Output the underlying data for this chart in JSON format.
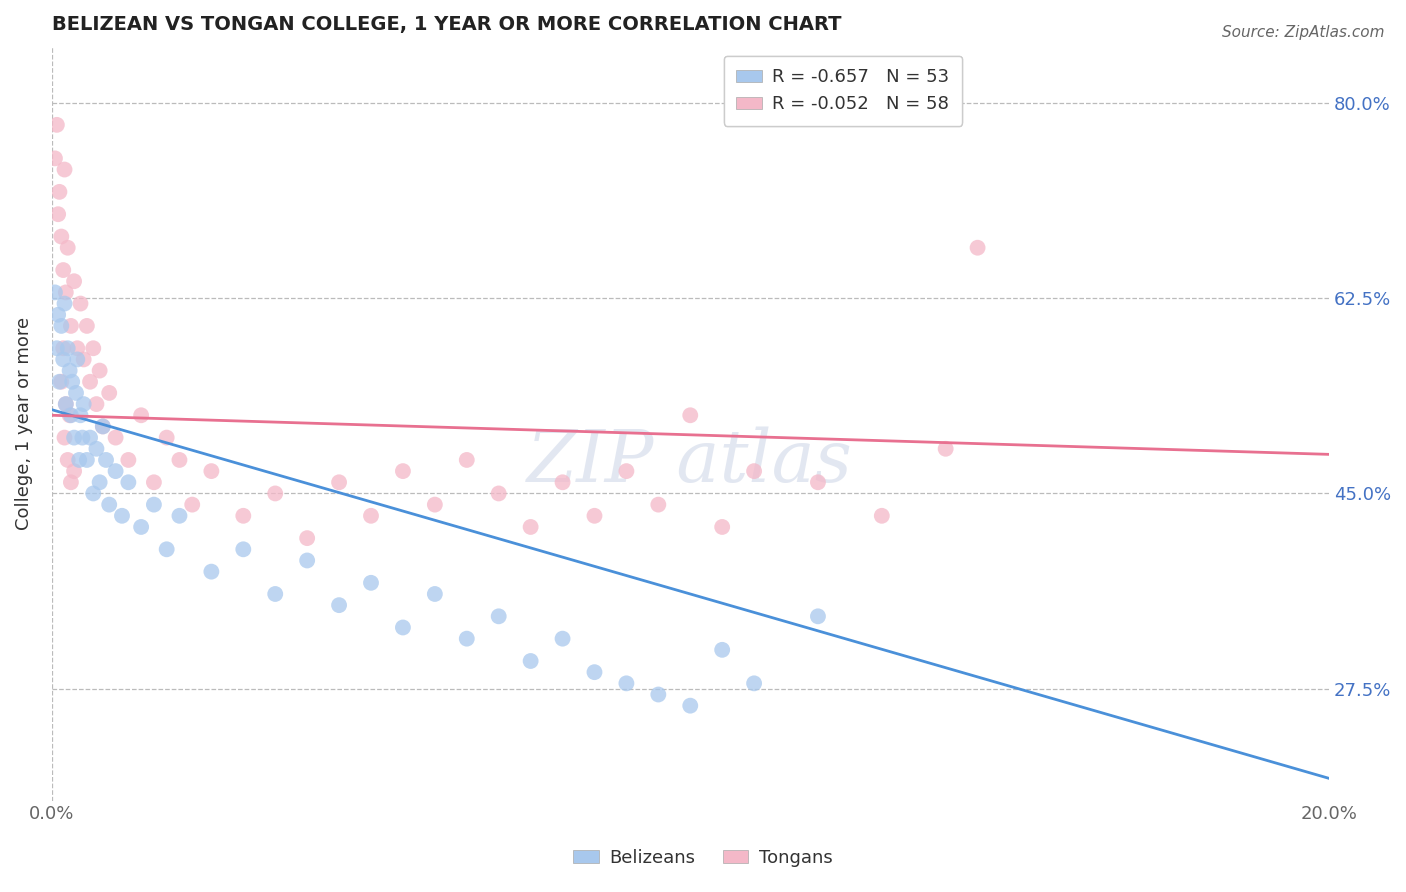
{
  "title": "BELIZEAN VS TONGAN COLLEGE, 1 YEAR OR MORE CORRELATION CHART",
  "source": "Source: ZipAtlas.com",
  "ylabel": "College, 1 year or more",
  "xlim": [
    0.0,
    20.0
  ],
  "ylim": [
    17.5,
    85.0
  ],
  "xticklabels": [
    "0.0%",
    "20.0%"
  ],
  "ytick_values": [
    27.5,
    45.0,
    62.5,
    80.0
  ],
  "ytick_labels": [
    "27.5%",
    "45.0%",
    "62.5%",
    "80.0%"
  ],
  "belizean_color": "#A8C8ED",
  "tongan_color": "#F4B8C8",
  "belizean_line_color": "#4A90D9",
  "tongan_line_color": "#E87090",
  "legend_label_1": "R = -0.657   N = 53",
  "legend_label_2": "R = -0.052   N = 58",
  "legend_name_1": "Belizeans",
  "legend_name_2": "Tongans",
  "belizean_x": [
    0.05,
    0.08,
    0.1,
    0.12,
    0.15,
    0.18,
    0.2,
    0.22,
    0.25,
    0.28,
    0.3,
    0.32,
    0.35,
    0.38,
    0.4,
    0.43,
    0.45,
    0.48,
    0.5,
    0.55,
    0.6,
    0.65,
    0.7,
    0.75,
    0.8,
    0.85,
    0.9,
    1.0,
    1.1,
    1.2,
    1.4,
    1.6,
    1.8,
    2.0,
    2.5,
    3.0,
    3.5,
    4.0,
    4.5,
    5.0,
    5.5,
    6.0,
    6.5,
    7.0,
    7.5,
    8.0,
    8.5,
    9.0,
    9.5,
    10.0,
    10.5,
    11.0,
    12.0
  ],
  "belizean_y": [
    63,
    58,
    61,
    55,
    60,
    57,
    62,
    53,
    58,
    56,
    52,
    55,
    50,
    54,
    57,
    48,
    52,
    50,
    53,
    48,
    50,
    45,
    49,
    46,
    51,
    48,
    44,
    47,
    43,
    46,
    42,
    44,
    40,
    43,
    38,
    40,
    36,
    39,
    35,
    37,
    33,
    36,
    32,
    34,
    30,
    32,
    29,
    28,
    27,
    26,
    31,
    28,
    34
  ],
  "tongan_x": [
    0.05,
    0.08,
    0.1,
    0.12,
    0.15,
    0.18,
    0.2,
    0.22,
    0.25,
    0.3,
    0.35,
    0.4,
    0.45,
    0.5,
    0.55,
    0.6,
    0.65,
    0.7,
    0.75,
    0.8,
    0.9,
    1.0,
    1.2,
    1.4,
    1.6,
    1.8,
    2.0,
    2.2,
    2.5,
    3.0,
    3.5,
    4.0,
    4.5,
    5.0,
    5.5,
    6.0,
    6.5,
    7.0,
    7.5,
    8.0,
    8.5,
    9.0,
    9.5,
    10.0,
    10.5,
    11.0,
    12.0,
    13.0,
    14.0,
    14.5,
    0.3,
    0.2,
    0.25,
    0.28,
    0.15,
    0.18,
    0.22,
    0.35
  ],
  "tongan_y": [
    75,
    78,
    70,
    72,
    68,
    65,
    74,
    63,
    67,
    60,
    64,
    58,
    62,
    57,
    60,
    55,
    58,
    53,
    56,
    51,
    54,
    50,
    48,
    52,
    46,
    50,
    48,
    44,
    47,
    43,
    45,
    41,
    46,
    43,
    47,
    44,
    48,
    45,
    42,
    46,
    43,
    47,
    44,
    52,
    42,
    47,
    46,
    43,
    49,
    67,
    46,
    50,
    48,
    52,
    55,
    58,
    53,
    47
  ],
  "blue_line_x": [
    0,
    20
  ],
  "blue_line_y": [
    52.5,
    19.5
  ],
  "pink_line_x": [
    0,
    20
  ],
  "pink_line_y": [
    52.0,
    48.5
  ]
}
